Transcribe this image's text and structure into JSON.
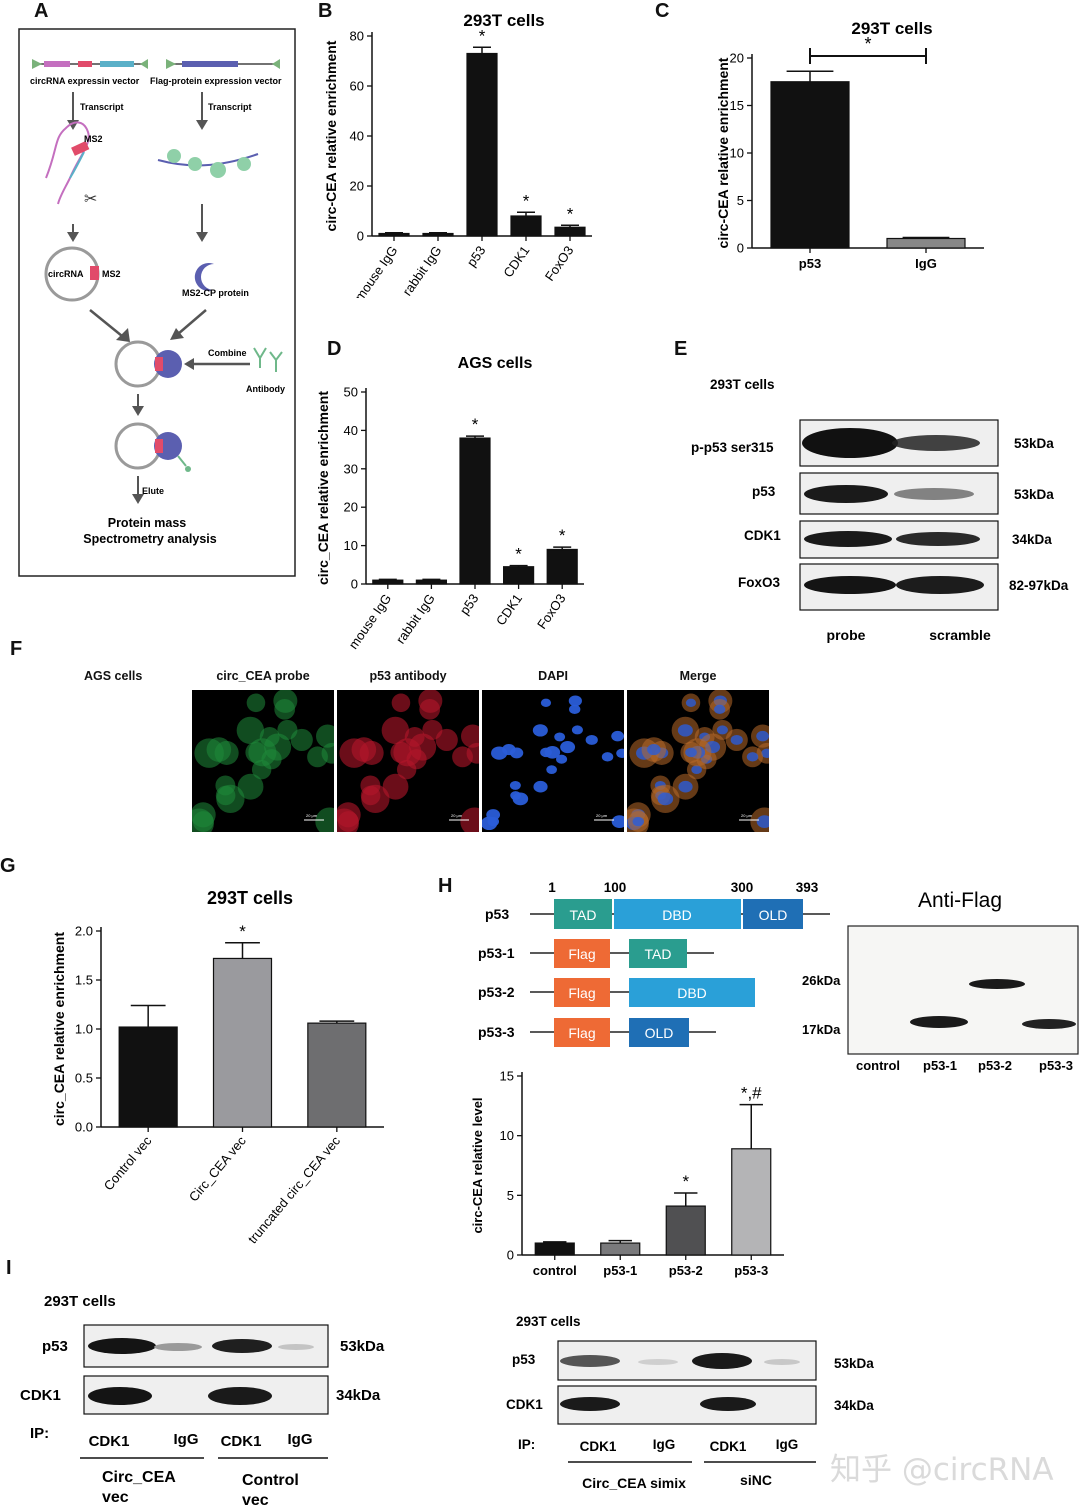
{
  "panels": {
    "A": {
      "letter": "A",
      "vector1": "circRNA expressin vector",
      "vector2": "Flag-protein expression vector",
      "transcript": "Transcript",
      "ms2": "MS2",
      "circrna": "circRNA",
      "ms2cp": "MS2-CP protein",
      "combine": "Combine",
      "antibody": "Antibody",
      "elute": "Elute",
      "result_line1": "Protein mass",
      "result_line2": "Spectrometry analysis"
    },
    "B": {
      "letter": "B"
    },
    "C": {
      "letter": "C"
    },
    "D": {
      "letter": "D"
    },
    "E": {
      "letter": "E",
      "cells": "293T cells",
      "rows": [
        {
          "label": "p-p53 ser315",
          "size": "53kDa"
        },
        {
          "label": "p53",
          "size": "53kDa"
        },
        {
          "label": "CDK1",
          "size": "34kDa"
        },
        {
          "label": "FoxO3",
          "size": "82-97kDa"
        }
      ],
      "lanes": [
        "probe",
        "scramble"
      ]
    },
    "F": {
      "letter": "F",
      "cells": "AGS cells",
      "channels": [
        "circ_CEA probe",
        "p53 antibody",
        "DAPI",
        "Merge"
      ],
      "scalebar": "20 μm"
    },
    "G": {
      "letter": "G"
    },
    "H": {
      "letter": "H",
      "positions": [
        "1",
        "100",
        "300",
        "393"
      ],
      "constructs": [
        {
          "name": "p53",
          "domains": [
            "TAD",
            "DBD",
            "OLD"
          ]
        },
        {
          "name": "p53-1",
          "domains": [
            "Flag",
            "TAD"
          ]
        },
        {
          "name": "p53-2",
          "domains": [
            "Flag",
            "DBD"
          ]
        },
        {
          "name": "p53-3",
          "domains": [
            "Flag",
            "OLD"
          ]
        }
      ],
      "blot_title": "Anti-Flag",
      "blot_sizes": [
        "26kDa",
        "17kDa"
      ],
      "blot_lanes": [
        "control",
        "p53-1",
        "p53-2",
        "p53-3"
      ]
    },
    "I": {
      "letter": "I",
      "left": {
        "cells": "293T cells",
        "rows": [
          {
            "label": "p53",
            "size": "53kDa"
          },
          {
            "label": "CDK1",
            "size": "34kDa"
          }
        ],
        "ip_label": "IP:",
        "lanes": [
          "CDK1",
          "IgG",
          "CDK1",
          "IgG"
        ],
        "groups": [
          {
            "l1": "Circ_CEA",
            "l2": "vec"
          },
          {
            "l1": "Control",
            "l2": "vec"
          }
        ]
      },
      "right": {
        "cells": "293T cells",
        "rows": [
          {
            "label": "p53",
            "size": "53kDa"
          },
          {
            "label": "CDK1",
            "size": "34kDa"
          }
        ],
        "ip_label": "IP:",
        "lanes": [
          "CDK1",
          "IgG",
          "CDK1",
          "IgG"
        ],
        "groups": [
          "Circ_CEA simix",
          "siNC"
        ]
      }
    }
  },
  "watermark": "知乎 @circRNA",
  "chart_data": [
    {
      "id": "B",
      "type": "bar",
      "title": "293T cells",
      "ylabel": "circ-CEA relative enrichment",
      "xlabel": "",
      "categories": [
        "mouse IgG",
        "rabbit IgG",
        "p53",
        "CDK1",
        "FoxO3"
      ],
      "values": [
        1,
        1,
        73,
        8,
        3.5
      ],
      "errors": [
        0.3,
        0.3,
        2.5,
        1.5,
        0.8
      ],
      "stars": [
        "",
        "",
        "*",
        "*",
        "*"
      ],
      "ylim": [
        0,
        80
      ],
      "yticks": [
        0,
        20,
        40,
        60,
        80
      ],
      "colors": [
        "#111111",
        "#111111",
        "#111111",
        "#111111",
        "#111111"
      ]
    },
    {
      "id": "C",
      "type": "bar",
      "title": "293T cells",
      "ylabel": "circ-CEA relative enrichment",
      "xlabel": "",
      "categories": [
        "p53",
        "IgG"
      ],
      "values": [
        17.5,
        1
      ],
      "errors": [
        1.1,
        0.1
      ],
      "stars": [
        "",
        ""
      ],
      "bracket": "*",
      "ylim": [
        0,
        20
      ],
      "yticks": [
        0,
        5,
        10,
        15,
        20
      ],
      "colors": [
        "#111111",
        "#888888"
      ]
    },
    {
      "id": "D",
      "type": "bar",
      "title": "AGS cells",
      "ylabel": "circ_CEA relative enrichment",
      "xlabel": "",
      "categories": [
        "mouse IgG",
        "rabbit IgG",
        "p53",
        "CDK1",
        "FoxO3"
      ],
      "values": [
        1,
        1,
        38,
        4.5,
        9
      ],
      "errors": [
        0.2,
        0.2,
        0.5,
        0.3,
        0.6
      ],
      "stars": [
        "",
        "",
        "*",
        "*",
        "*"
      ],
      "ylim": [
        0,
        50
      ],
      "yticks": [
        0,
        10,
        20,
        30,
        40,
        50
      ],
      "colors": [
        "#111111",
        "#111111",
        "#111111",
        "#111111",
        "#111111"
      ]
    },
    {
      "id": "G",
      "type": "bar",
      "title": "293T cells",
      "ylabel": "circ_CEA relative enrichment",
      "xlabel": "",
      "categories": [
        "Control vec",
        "Circ_CEA vec",
        "truncated circ_CEA vec"
      ],
      "values": [
        1.02,
        1.72,
        1.06
      ],
      "errors": [
        0.22,
        0.16,
        0.02
      ],
      "stars": [
        "",
        "*",
        ""
      ],
      "ylim": [
        0,
        2
      ],
      "yticks": [
        "0.0",
        "0.5",
        "1.0",
        "1.5",
        "2.0"
      ],
      "colors": [
        "#111111",
        "#9a9a9e",
        "#6e6e70"
      ]
    },
    {
      "id": "H",
      "type": "bar",
      "title": "",
      "ylabel": "circ-CEA relative level",
      "xlabel": "",
      "categories": [
        "control",
        "p53-1",
        "p53-2",
        "p53-3"
      ],
      "values": [
        1,
        1,
        4.1,
        8.9
      ],
      "errors": [
        0.1,
        0.2,
        1.1,
        3.7
      ],
      "stars": [
        "",
        "",
        "*",
        "*,#"
      ],
      "ylim": [
        0,
        15
      ],
      "yticks": [
        0,
        5,
        10,
        15
      ],
      "colors": [
        "#111111",
        "#7a7a7c",
        "#505052",
        "#b4b4b6"
      ]
    }
  ]
}
